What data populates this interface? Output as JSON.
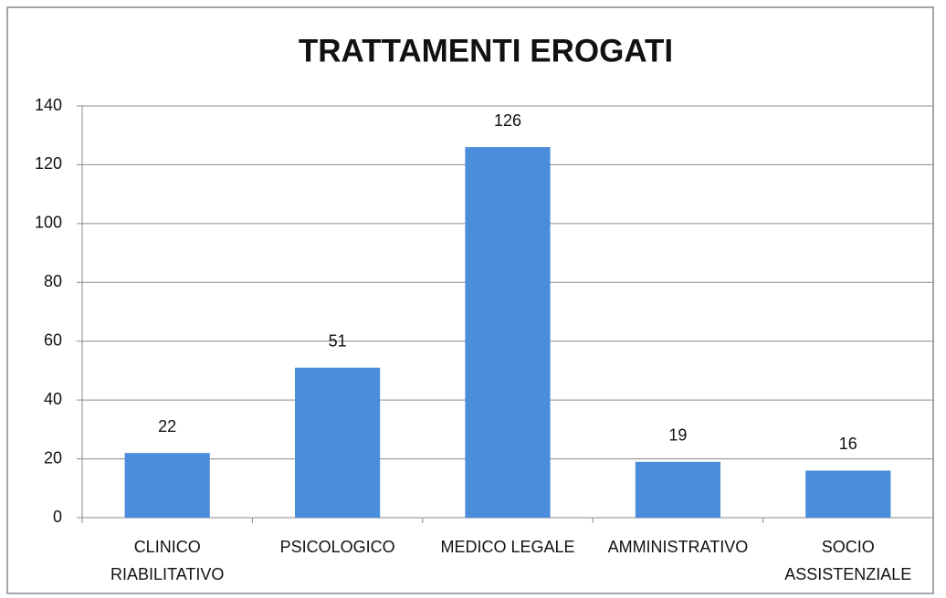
{
  "chart_data": {
    "type": "bar",
    "title": "TRATTAMENTI EROGATI",
    "categories": [
      "CLINICO\nRIABILITATIVO",
      "PSICOLOGICO",
      "MEDICO LEGALE",
      "AMMINISTRATIVO",
      "SOCIO\nASSISTENZIALE"
    ],
    "values": [
      22,
      51,
      126,
      19,
      16
    ],
    "color": "#4a8ddb",
    "ylim": [
      0,
      140
    ],
    "yticks": [
      0,
      20,
      40,
      60,
      80,
      100,
      120,
      140
    ],
    "grid": true
  }
}
